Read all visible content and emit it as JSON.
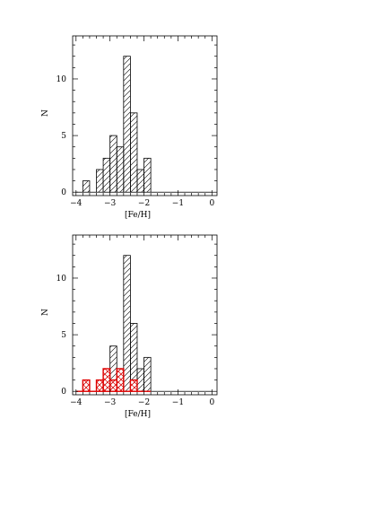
{
  "chart_data": [
    {
      "type": "bar",
      "xlabel": "[Fe/H]",
      "ylabel": "N",
      "xlim": [
        -4.1,
        0.15
      ],
      "ylim": [
        -0.3,
        13.8
      ],
      "xticks": [
        -4,
        -3,
        -2,
        -1,
        0
      ],
      "xtick_labels": [
        "−4",
        "−3",
        "−2",
        "−1",
        "0"
      ],
      "yticks": [
        0,
        5,
        10
      ],
      "ytick_labels": [
        "0",
        "5",
        "10"
      ],
      "bin_width": 0.2,
      "series": [
        {
          "color": "#000000",
          "hatch": "diagonal",
          "bins": [
            {
              "x0": -4.0,
              "value": 0
            },
            {
              "x0": -3.8,
              "value": 1
            },
            {
              "x0": -3.6,
              "value": 0
            },
            {
              "x0": -3.4,
              "value": 2
            },
            {
              "x0": -3.2,
              "value": 3
            },
            {
              "x0": -3.0,
              "value": 5
            },
            {
              "x0": -2.8,
              "value": 4
            },
            {
              "x0": -2.6,
              "value": 12
            },
            {
              "x0": -2.4,
              "value": 7
            },
            {
              "x0": -2.2,
              "value": 2
            },
            {
              "x0": -2.0,
              "value": 3
            },
            {
              "x0": -1.8,
              "value": 0
            },
            {
              "x0": -1.6,
              "value": 0
            },
            {
              "x0": -1.4,
              "value": 0
            },
            {
              "x0": -1.2,
              "value": 0
            },
            {
              "x0": -1.0,
              "value": 0
            },
            {
              "x0": -0.8,
              "value": 0
            },
            {
              "x0": -0.6,
              "value": 0
            },
            {
              "x0": -0.4,
              "value": 0
            },
            {
              "x0": -0.2,
              "value": 0
            }
          ]
        }
      ]
    },
    {
      "type": "bar",
      "xlabel": "[Fe/H]",
      "ylabel": "N",
      "xlim": [
        -4.1,
        0.15
      ],
      "ylim": [
        -0.3,
        13.8
      ],
      "xticks": [
        -4,
        -3,
        -2,
        -1,
        0
      ],
      "xtick_labels": [
        "−4",
        "−3",
        "−2",
        "−1",
        "0"
      ],
      "yticks": [
        0,
        5,
        10
      ],
      "ytick_labels": [
        "0",
        "5",
        "10"
      ],
      "bin_width": 0.2,
      "series": [
        {
          "color": "#000000",
          "hatch": "diagonal",
          "bins": [
            {
              "x0": -4.0,
              "value": 0
            },
            {
              "x0": -3.8,
              "value": 1
            },
            {
              "x0": -3.6,
              "value": 0
            },
            {
              "x0": -3.4,
              "value": 1
            },
            {
              "x0": -3.2,
              "value": 2
            },
            {
              "x0": -3.0,
              "value": 4
            },
            {
              "x0": -2.8,
              "value": 2
            },
            {
              "x0": -2.6,
              "value": 12
            },
            {
              "x0": -2.4,
              "value": 6
            },
            {
              "x0": -2.2,
              "value": 2
            },
            {
              "x0": -2.0,
              "value": 3
            },
            {
              "x0": -1.8,
              "value": 0
            },
            {
              "x0": -1.6,
              "value": 0
            },
            {
              "x0": -1.4,
              "value": 0
            },
            {
              "x0": -1.2,
              "value": 0
            },
            {
              "x0": -1.0,
              "value": 0
            },
            {
              "x0": -0.8,
              "value": 0
            },
            {
              "x0": -0.6,
              "value": 0
            },
            {
              "x0": -0.4,
              "value": 0
            },
            {
              "x0": -0.2,
              "value": 0
            }
          ]
        },
        {
          "color": "#e00000",
          "hatch": "crosshatch",
          "bins": [
            {
              "x0": -4.0,
              "value": 0
            },
            {
              "x0": -3.8,
              "value": 1
            },
            {
              "x0": -3.6,
              "value": 0
            },
            {
              "x0": -3.4,
              "value": 1
            },
            {
              "x0": -3.2,
              "value": 2
            },
            {
              "x0": -3.0,
              "value": 1
            },
            {
              "x0": -2.8,
              "value": 2
            },
            {
              "x0": -2.6,
              "value": 0
            },
            {
              "x0": -2.4,
              "value": 1
            },
            {
              "x0": -2.2,
              "value": 0
            },
            {
              "x0": -2.0,
              "value": 0
            }
          ]
        }
      ]
    }
  ]
}
